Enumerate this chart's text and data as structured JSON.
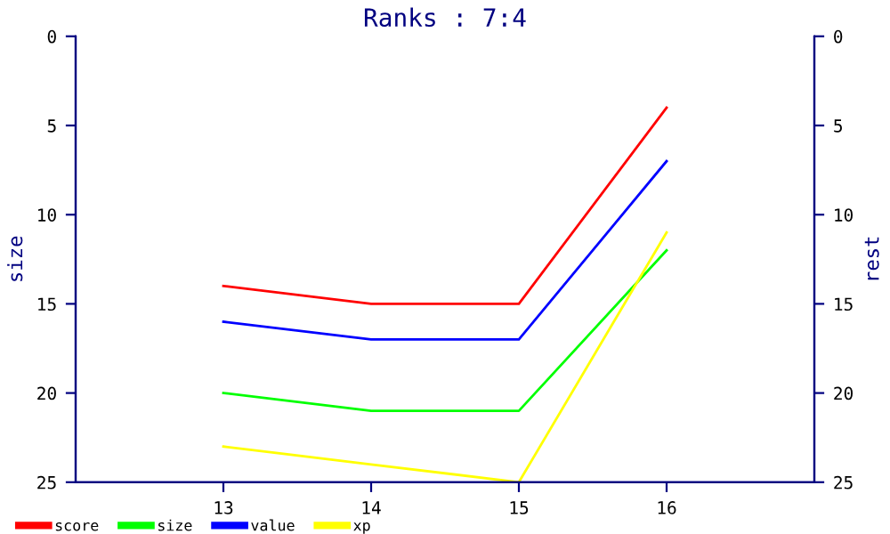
{
  "chart_data": {
    "type": "line",
    "title": "Ranks : 7:4",
    "ylabel": "size",
    "y2label": "rest",
    "x": [
      13,
      14,
      15,
      16
    ],
    "series": [
      {
        "name": "score",
        "color": "#ff0000",
        "values": [
          14,
          15,
          15,
          4
        ]
      },
      {
        "name": "size",
        "color": "#00ff00",
        "values": [
          20,
          21,
          21,
          12
        ]
      },
      {
        "name": "value",
        "color": "#0000ff",
        "values": [
          16,
          17,
          17,
          7
        ]
      },
      {
        "name": "xp",
        "color": "#ffff00",
        "values": [
          23,
          24,
          25,
          11
        ]
      }
    ],
    "xlim": [
      12,
      17
    ],
    "xticks": [
      13,
      14,
      15,
      16
    ],
    "ylim": [
      25,
      0
    ],
    "yticks": [
      0,
      5,
      10,
      15,
      20,
      25
    ],
    "y2lim": [
      25,
      0
    ],
    "y2ticks": [
      0,
      5,
      10,
      15,
      20,
      25
    ],
    "grid": false,
    "legend": "bottom left",
    "marker": "none",
    "line_style": "solid"
  }
}
